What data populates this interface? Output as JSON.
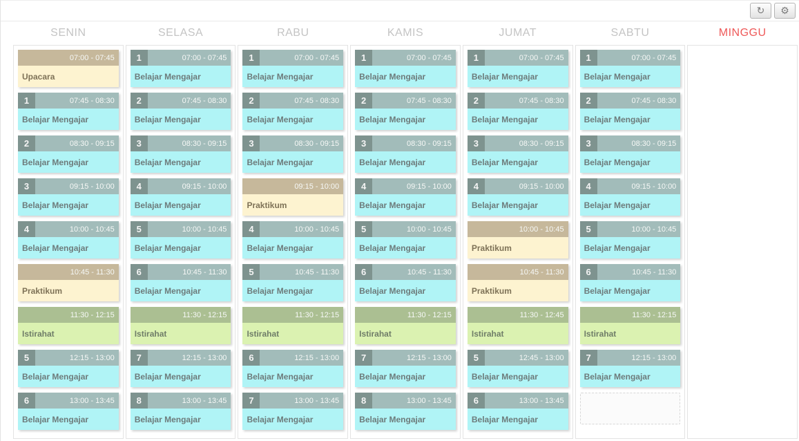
{
  "toolbar": {
    "refresh_icon": "↻",
    "settings_icon": "⚙"
  },
  "colors": {
    "teaching_header": "#a2bcba",
    "teaching_badge": "#7e938f",
    "teaching_body": "#b0f4f6",
    "teaching_text": "#6d7b7b",
    "practice_header": "#c6b89b",
    "practice_body": "#fdf3d0",
    "practice_text": "#7e7257",
    "break_header": "#abbf92",
    "break_body": "#dbf2b1",
    "break_text": "#6f7d68",
    "time_text": "#f6f8f6",
    "day_label": "#c4c4c4",
    "holiday_label": "#ee5858"
  },
  "days": [
    {
      "label": "SENIN",
      "holiday": false,
      "slots": [
        {
          "type": "practice",
          "num": "",
          "time": "07:00 - 07:45",
          "title": "Upacara"
        },
        {
          "type": "teaching",
          "num": "1",
          "time": "07:45 - 08:30",
          "title": "Belajar Mengajar"
        },
        {
          "type": "teaching",
          "num": "2",
          "time": "08:30 - 09:15",
          "title": "Belajar Mengajar"
        },
        {
          "type": "teaching",
          "num": "3",
          "time": "09:15 - 10:00",
          "title": "Belajar Mengajar"
        },
        {
          "type": "teaching",
          "num": "4",
          "time": "10:00 - 10:45",
          "title": "Belajar Mengajar"
        },
        {
          "type": "practice",
          "num": "",
          "time": "10:45 - 11:30",
          "title": "Praktikum"
        },
        {
          "type": "break",
          "num": "",
          "time": "11:30 - 12:15",
          "title": "Istirahat"
        },
        {
          "type": "teaching",
          "num": "5",
          "time": "12:15 - 13:00",
          "title": "Belajar Mengajar"
        },
        {
          "type": "teaching",
          "num": "6",
          "time": "13:00 - 13:45",
          "title": "Belajar Mengajar"
        }
      ]
    },
    {
      "label": "SELASA",
      "holiday": false,
      "slots": [
        {
          "type": "teaching",
          "num": "1",
          "time": "07:00 - 07:45",
          "title": "Belajar Mengajar"
        },
        {
          "type": "teaching",
          "num": "2",
          "time": "07:45 - 08:30",
          "title": "Belajar Mengajar"
        },
        {
          "type": "teaching",
          "num": "3",
          "time": "08:30 - 09:15",
          "title": "Belajar Mengajar"
        },
        {
          "type": "teaching",
          "num": "4",
          "time": "09:15 - 10:00",
          "title": "Belajar Mengajar"
        },
        {
          "type": "teaching",
          "num": "5",
          "time": "10:00 - 10:45",
          "title": "Belajar Mengajar"
        },
        {
          "type": "teaching",
          "num": "6",
          "time": "10:45 - 11:30",
          "title": "Belajar Mengajar"
        },
        {
          "type": "break",
          "num": "",
          "time": "11:30 - 12:15",
          "title": "Istirahat"
        },
        {
          "type": "teaching",
          "num": "7",
          "time": "12:15 - 13:00",
          "title": "Belajar Mengajar"
        },
        {
          "type": "teaching",
          "num": "8",
          "time": "13:00 - 13:45",
          "title": "Belajar Mengajar"
        }
      ]
    },
    {
      "label": "RABU",
      "holiday": false,
      "slots": [
        {
          "type": "teaching",
          "num": "1",
          "time": "07:00 - 07:45",
          "title": "Belajar Mengajar"
        },
        {
          "type": "teaching",
          "num": "2",
          "time": "07:45 - 08:30",
          "title": "Belajar Mengajar"
        },
        {
          "type": "teaching",
          "num": "3",
          "time": "08:30 - 09:15",
          "title": "Belajar Mengajar"
        },
        {
          "type": "practice",
          "num": "",
          "time": "09:15 - 10:00",
          "title": "Praktikum"
        },
        {
          "type": "teaching",
          "num": "4",
          "time": "10:00 - 10:45",
          "title": "Belajar Mengajar"
        },
        {
          "type": "teaching",
          "num": "5",
          "time": "10:45 - 11:30",
          "title": "Belajar Mengajar"
        },
        {
          "type": "break",
          "num": "",
          "time": "11:30 - 12:15",
          "title": "Istirahat"
        },
        {
          "type": "teaching",
          "num": "6",
          "time": "12:15 - 13:00",
          "title": "Belajar Mengajar"
        },
        {
          "type": "teaching",
          "num": "7",
          "time": "13:00 - 13:45",
          "title": "Belajar Mengajar"
        }
      ]
    },
    {
      "label": "KAMIS",
      "holiday": false,
      "slots": [
        {
          "type": "teaching",
          "num": "1",
          "time": "07:00 - 07:45",
          "title": "Belajar Mengajar"
        },
        {
          "type": "teaching",
          "num": "2",
          "time": "07:45 - 08:30",
          "title": "Belajar Mengajar"
        },
        {
          "type": "teaching",
          "num": "3",
          "time": "08:30 - 09:15",
          "title": "Belajar Mengajar"
        },
        {
          "type": "teaching",
          "num": "4",
          "time": "09:15 - 10:00",
          "title": "Belajar Mengajar"
        },
        {
          "type": "teaching",
          "num": "5",
          "time": "10:00 - 10:45",
          "title": "Belajar Mengajar"
        },
        {
          "type": "teaching",
          "num": "6",
          "time": "10:45 - 11:30",
          "title": "Belajar Mengajar"
        },
        {
          "type": "break",
          "num": "",
          "time": "11:30 - 12:15",
          "title": "Istirahat"
        },
        {
          "type": "teaching",
          "num": "7",
          "time": "12:15 - 13:00",
          "title": "Belajar Mengajar"
        },
        {
          "type": "teaching",
          "num": "8",
          "time": "13:00 - 13:45",
          "title": "Belajar Mengajar"
        }
      ]
    },
    {
      "label": "JUMAT",
      "holiday": false,
      "slots": [
        {
          "type": "teaching",
          "num": "1",
          "time": "07:00 - 07:45",
          "title": "Belajar Mengajar"
        },
        {
          "type": "teaching",
          "num": "2",
          "time": "07:45 - 08:30",
          "title": "Belajar Mengajar"
        },
        {
          "type": "teaching",
          "num": "3",
          "time": "08:30 - 09:15",
          "title": "Belajar Mengajar"
        },
        {
          "type": "teaching",
          "num": "4",
          "time": "09:15 - 10:00",
          "title": "Belajar Mengajar"
        },
        {
          "type": "practice",
          "num": "",
          "time": "10:00 - 10:45",
          "title": "Praktikum"
        },
        {
          "type": "practice",
          "num": "",
          "time": "10:45 - 11:30",
          "title": "Praktikum"
        },
        {
          "type": "break",
          "num": "",
          "time": "11:30 - 12:45",
          "title": "Istirahat"
        },
        {
          "type": "teaching",
          "num": "5",
          "time": "12:45 - 13:00",
          "title": "Belajar Mengajar"
        },
        {
          "type": "teaching",
          "num": "6",
          "time": "13:00 - 13:45",
          "title": "Belajar Mengajar"
        }
      ]
    },
    {
      "label": "SABTU",
      "holiday": false,
      "slots": [
        {
          "type": "teaching",
          "num": "1",
          "time": "07:00 - 07:45",
          "title": "Belajar Mengajar"
        },
        {
          "type": "teaching",
          "num": "2",
          "time": "07:45 - 08:30",
          "title": "Belajar Mengajar"
        },
        {
          "type": "teaching",
          "num": "3",
          "time": "08:30 - 09:15",
          "title": "Belajar Mengajar"
        },
        {
          "type": "teaching",
          "num": "4",
          "time": "09:15 - 10:00",
          "title": "Belajar Mengajar"
        },
        {
          "type": "teaching",
          "num": "5",
          "time": "10:00 - 10:45",
          "title": "Belajar Mengajar"
        },
        {
          "type": "teaching",
          "num": "6",
          "time": "10:45 - 11:30",
          "title": "Belajar Mengajar"
        },
        {
          "type": "break",
          "num": "",
          "time": "11:30 - 12:15",
          "title": "Istirahat"
        },
        {
          "type": "teaching",
          "num": "7",
          "time": "12:15 - 13:00",
          "title": "Belajar Mengajar"
        },
        {
          "type": "empty",
          "num": "",
          "time": "",
          "title": ""
        }
      ]
    },
    {
      "label": "MINGGU",
      "holiday": true,
      "slots": []
    }
  ]
}
